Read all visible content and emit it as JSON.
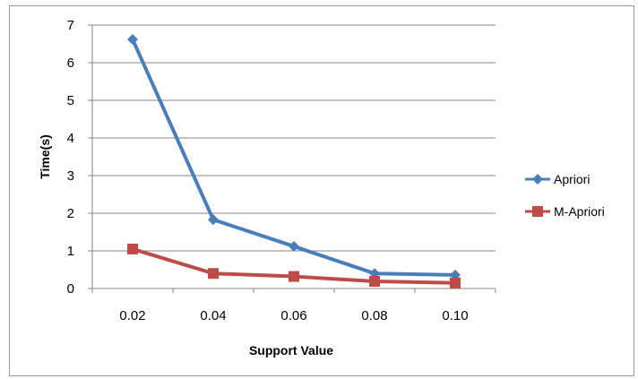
{
  "chart_data": {
    "type": "line",
    "xlabel": "Support Value",
    "ylabel": "Time(s)",
    "categories": [
      "0.02",
      "0.04",
      "0.06",
      "0.08",
      "0.10"
    ],
    "ylim": [
      0,
      7
    ],
    "yticks": [
      "0",
      "1",
      "2",
      "3",
      "4",
      "5",
      "6",
      "7"
    ],
    "grid": "horizontal",
    "legend_position": "right",
    "series": [
      {
        "name": "Apriori",
        "values": [
          6.62,
          1.83,
          1.12,
          0.4,
          0.36
        ],
        "color": "#4a7ebb",
        "marker": "diamond"
      },
      {
        "name": "M-Apriori",
        "values": [
          1.05,
          0.4,
          0.32,
          0.19,
          0.15
        ],
        "color": "#be4b48",
        "marker": "square"
      }
    ]
  }
}
